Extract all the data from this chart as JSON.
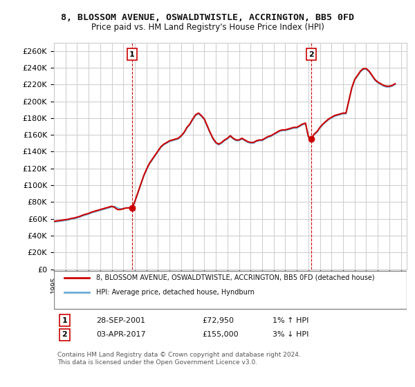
{
  "title": "8, BLOSSOM AVENUE, OSWALDTWISTLE, ACCRINGTON, BB5 0FD",
  "subtitle": "Price paid vs. HM Land Registry's House Price Index (HPI)",
  "ylabel_ticks": [
    "£0",
    "£20K",
    "£40K",
    "£60K",
    "£80K",
    "£100K",
    "£120K",
    "£140K",
    "£160K",
    "£180K",
    "£200K",
    "£220K",
    "£240K",
    "£260K"
  ],
  "ytick_values": [
    0,
    20000,
    40000,
    60000,
    80000,
    100000,
    120000,
    140000,
    160000,
    180000,
    200000,
    220000,
    240000,
    260000
  ],
  "ylim": [
    0,
    270000
  ],
  "xlim_start": 1995.0,
  "xlim_end": 2025.5,
  "background_color": "#ffffff",
  "grid_color": "#d0d0d0",
  "sale1": {
    "label": "1",
    "date": "28-SEP-2001",
    "price": 72950,
    "x": 2001.75,
    "hpi_pct": "1% ↑ HPI"
  },
  "sale2": {
    "label": "2",
    "date": "03-APR-2017",
    "price": 155000,
    "x": 2017.25,
    "hpi_pct": "3% ↓ HPI"
  },
  "legend_label_red": "8, BLOSSOM AVENUE, OSWALDTWISTLE, ACCRINGTON, BB5 0FD (detached house)",
  "legend_label_blue": "HPI: Average price, detached house, Hyndburn",
  "footnote": "Contains HM Land Registry data © Crown copyright and database right 2024.\nThis data is licensed under the Open Government Licence v3.0.",
  "table_rows": [
    {
      "num": "1",
      "date": "28-SEP-2001",
      "price": "£72,950",
      "hpi": "1% ↑ HPI"
    },
    {
      "num": "2",
      "date": "03-APR-2017",
      "price": "£155,000",
      "hpi": "3% ↓ HPI"
    }
  ],
  "hpi_line": {
    "x": [
      1995.0,
      1995.25,
      1995.5,
      1995.75,
      1996.0,
      1996.25,
      1996.5,
      1996.75,
      1997.0,
      1997.25,
      1997.5,
      1997.75,
      1998.0,
      1998.25,
      1998.5,
      1998.75,
      1999.0,
      1999.25,
      1999.5,
      1999.75,
      2000.0,
      2000.25,
      2000.5,
      2000.75,
      2001.0,
      2001.25,
      2001.5,
      2001.75,
      2002.0,
      2002.25,
      2002.5,
      2002.75,
      2003.0,
      2003.25,
      2003.5,
      2003.75,
      2004.0,
      2004.25,
      2004.5,
      2004.75,
      2005.0,
      2005.25,
      2005.5,
      2005.75,
      2006.0,
      2006.25,
      2006.5,
      2006.75,
      2007.0,
      2007.25,
      2007.5,
      2007.75,
      2008.0,
      2008.25,
      2008.5,
      2008.75,
      2009.0,
      2009.25,
      2009.5,
      2009.75,
      2010.0,
      2010.25,
      2010.5,
      2010.75,
      2011.0,
      2011.25,
      2011.5,
      2011.75,
      2012.0,
      2012.25,
      2012.5,
      2012.75,
      2013.0,
      2013.25,
      2013.5,
      2013.75,
      2014.0,
      2014.25,
      2014.5,
      2014.75,
      2015.0,
      2015.25,
      2015.5,
      2015.75,
      2016.0,
      2016.25,
      2016.5,
      2016.75,
      2017.0,
      2017.25,
      2017.5,
      2017.75,
      2018.0,
      2018.25,
      2018.5,
      2018.75,
      2019.0,
      2019.25,
      2019.5,
      2019.75,
      2020.0,
      2020.25,
      2020.5,
      2020.75,
      2021.0,
      2021.25,
      2021.5,
      2021.75,
      2022.0,
      2022.25,
      2022.5,
      2022.75,
      2023.0,
      2023.25,
      2023.5,
      2023.75,
      2024.0,
      2024.25,
      2024.5
    ],
    "y": [
      56000,
      56500,
      57000,
      57500,
      58000,
      58500,
      59500,
      60000,
      61000,
      62000,
      63500,
      64500,
      65500,
      67000,
      68000,
      69000,
      70000,
      71000,
      72000,
      73000,
      74000,
      75000,
      73000,
      72000,
      72500,
      73000,
      73500,
      72950,
      80000,
      90000,
      100000,
      110000,
      118000,
      125000,
      130000,
      135000,
      140000,
      145000,
      148000,
      150000,
      152000,
      153000,
      154000,
      155000,
      158000,
      162000,
      168000,
      172000,
      178000,
      183000,
      185000,
      182000,
      178000,
      170000,
      162000,
      155000,
      150000,
      148000,
      150000,
      153000,
      155000,
      158000,
      155000,
      153000,
      153000,
      155000,
      153000,
      151000,
      150000,
      150000,
      152000,
      153000,
      153000,
      155000,
      157000,
      158000,
      160000,
      162000,
      164000,
      165000,
      165000,
      166000,
      167000,
      168000,
      168000,
      170000,
      172000,
      173000,
      157000,
      155000,
      160000,
      163000,
      168000,
      172000,
      175000,
      178000,
      180000,
      182000,
      183000,
      184000,
      185000,
      185000,
      200000,
      215000,
      225000,
      230000,
      235000,
      238000,
      238000,
      235000,
      230000,
      225000,
      222000,
      220000,
      218000,
      217000,
      217000,
      218000,
      220000
    ]
  },
  "price_line": {
    "x": [
      1995.0,
      1995.25,
      1995.5,
      1995.75,
      1996.0,
      1996.25,
      1996.5,
      1996.75,
      1997.0,
      1997.25,
      1997.5,
      1997.75,
      1998.0,
      1998.25,
      1998.5,
      1998.75,
      1999.0,
      1999.25,
      1999.5,
      1999.75,
      2000.0,
      2000.25,
      2000.5,
      2000.75,
      2001.0,
      2001.25,
      2001.5,
      2001.75,
      2002.0,
      2002.25,
      2002.5,
      2002.75,
      2003.0,
      2003.25,
      2003.5,
      2003.75,
      2004.0,
      2004.25,
      2004.5,
      2004.75,
      2005.0,
      2005.25,
      2005.5,
      2005.75,
      2006.0,
      2006.25,
      2006.5,
      2006.75,
      2007.0,
      2007.25,
      2007.5,
      2007.75,
      2008.0,
      2008.25,
      2008.5,
      2008.75,
      2009.0,
      2009.25,
      2009.5,
      2009.75,
      2010.0,
      2010.25,
      2010.5,
      2010.75,
      2011.0,
      2011.25,
      2011.5,
      2011.75,
      2012.0,
      2012.25,
      2012.5,
      2012.75,
      2013.0,
      2013.25,
      2013.5,
      2013.75,
      2014.0,
      2014.25,
      2014.5,
      2014.75,
      2015.0,
      2015.25,
      2015.5,
      2015.75,
      2016.0,
      2016.25,
      2016.5,
      2016.75,
      2017.0,
      2017.25,
      2017.5,
      2017.75,
      2018.0,
      2018.25,
      2018.5,
      2018.75,
      2019.0,
      2019.25,
      2019.5,
      2019.75,
      2020.0,
      2020.25,
      2020.5,
      2020.75,
      2021.0,
      2021.25,
      2021.5,
      2021.75,
      2022.0,
      2022.25,
      2022.5,
      2022.75,
      2023.0,
      2023.25,
      2023.5,
      2023.75,
      2024.0,
      2024.25,
      2024.5
    ],
    "y": [
      57000,
      57500,
      58000,
      58500,
      59000,
      59500,
      60500,
      61000,
      62000,
      63000,
      64500,
      65500,
      66500,
      68000,
      69000,
      70000,
      71000,
      72000,
      73000,
      74000,
      75000,
      73500,
      71000,
      71000,
      72000,
      73000,
      73000,
      72950,
      81000,
      91000,
      101000,
      111000,
      119000,
      126000,
      131000,
      136000,
      141000,
      146000,
      149000,
      151000,
      153000,
      154000,
      155000,
      156000,
      159000,
      163000,
      169000,
      173000,
      179000,
      184000,
      186000,
      183000,
      179000,
      171000,
      163000,
      156000,
      151000,
      149000,
      151000,
      154000,
      156000,
      159000,
      156000,
      154000,
      154000,
      156000,
      154000,
      152000,
      151000,
      151000,
      153000,
      154000,
      154000,
      156000,
      158000,
      159000,
      161000,
      163000,
      165000,
      166000,
      166000,
      167000,
      168000,
      169000,
      169000,
      171000,
      173000,
      174000,
      158000,
      155000,
      161000,
      164000,
      169000,
      173000,
      176000,
      179000,
      181000,
      183000,
      184000,
      185000,
      186000,
      186000,
      201000,
      216000,
      226000,
      231000,
      236000,
      239000,
      239000,
      236000,
      231000,
      226000,
      223000,
      221000,
      219000,
      218000,
      218000,
      219000,
      221000
    ]
  }
}
